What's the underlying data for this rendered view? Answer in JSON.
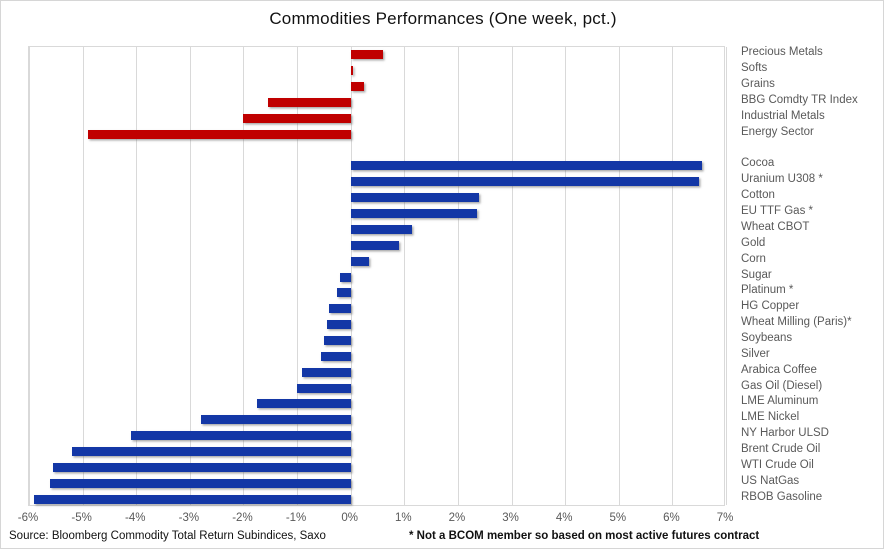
{
  "title": "Commodities Performances (One week, pct.)",
  "footer": {
    "source": "Source: Bloomberg Commodity Total Return Subindices, Saxo",
    "note": "* Not a BCOM member so based on most active futures contract"
  },
  "colors": {
    "sector_bar": "#c00000",
    "commodity_bar": "#1337a6",
    "gridline": "#d9d9d9",
    "label_text": "#595959"
  },
  "chart_data": {
    "type": "bar",
    "orientation": "horizontal",
    "title": "Commodities Performances (One week, pct.)",
    "xlabel": "",
    "ylabel": "",
    "grid": true,
    "legend": "none",
    "x_axis": {
      "min": -6,
      "max": 7,
      "step": 1,
      "unit": "%",
      "tick_labels": [
        "-6%",
        "-5%",
        "-4%",
        "-3%",
        "-2%",
        "-1%",
        "0%",
        "1%",
        "2%",
        "3%",
        "4%",
        "5%",
        "6%",
        "7%"
      ]
    },
    "series": [
      {
        "name": "Sector Indices",
        "color": "#c00000",
        "points": [
          {
            "label": "Precious Metals",
            "value": 0.6
          },
          {
            "label": "Softs",
            "value": 0.05
          },
          {
            "label": "Grains",
            "value": 0.25
          },
          {
            "label": "BBG Comdty TR Index",
            "value": -1.55
          },
          {
            "label": "Industrial Metals",
            "value": -2.0
          },
          {
            "label": "Energy Sector",
            "value": -4.9
          }
        ]
      },
      {
        "name": "Single Commodities",
        "color": "#1337a6",
        "points": [
          {
            "label": "Cocoa",
            "value": 6.55
          },
          {
            "label": "Uranium U308 *",
            "value": 6.5
          },
          {
            "label": "Cotton",
            "value": 2.4
          },
          {
            "label": "EU TTF Gas *",
            "value": 2.35
          },
          {
            "label": "Wheat CBOT",
            "value": 1.15
          },
          {
            "label": "Gold",
            "value": 0.9
          },
          {
            "label": "Corn",
            "value": 0.35
          },
          {
            "label": "Sugar",
            "value": -0.2
          },
          {
            "label": "Platinum *",
            "value": -0.25
          },
          {
            "label": "HG Copper",
            "value": -0.4
          },
          {
            "label": "Wheat Milling (Paris)*",
            "value": -0.45
          },
          {
            "label": "Soybeans",
            "value": -0.5
          },
          {
            "label": "Silver",
            "value": -0.55
          },
          {
            "label": "Arabica Coffee",
            "value": -0.9
          },
          {
            "label": "Gas Oil (Diesel)",
            "value": -1.0
          },
          {
            "label": "LME Aluminum",
            "value": -1.75
          },
          {
            "label": "LME Nickel",
            "value": -2.8
          },
          {
            "label": "NY Harbor ULSD",
            "value": -4.1
          },
          {
            "label": "Brent Crude Oil",
            "value": -5.2
          },
          {
            "label": "WTI Crude Oil",
            "value": -5.55
          },
          {
            "label": "US NatGas",
            "value": -5.6
          },
          {
            "label": "RBOB Gasoline",
            "value": -5.9
          }
        ]
      }
    ]
  }
}
